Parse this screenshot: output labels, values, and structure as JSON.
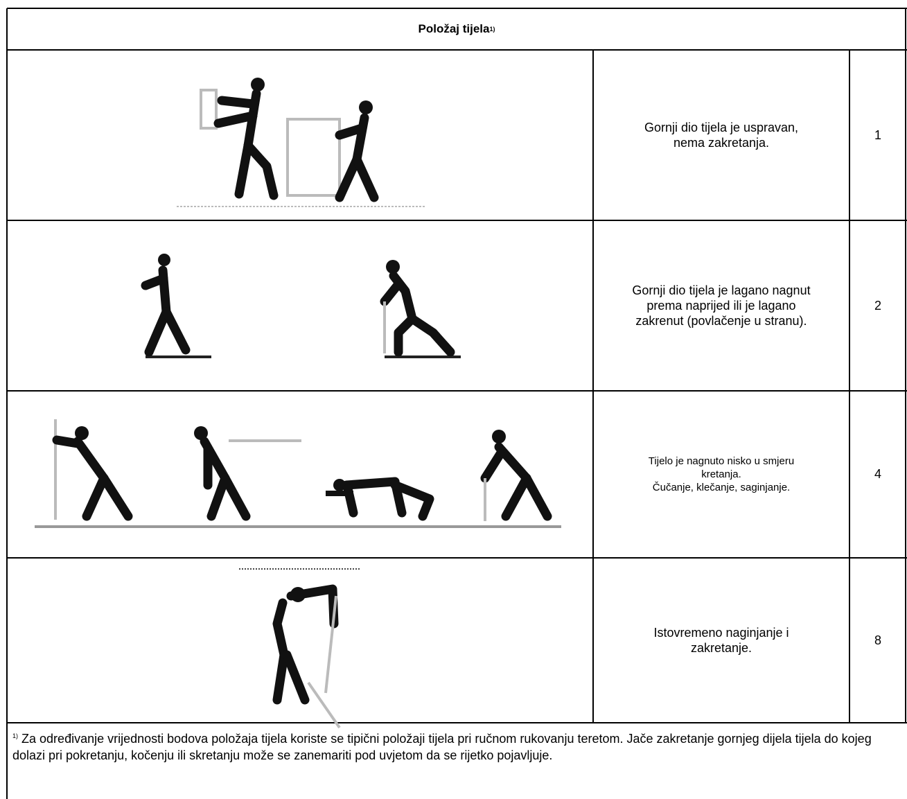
{
  "header": {
    "title": "Položaj tijela",
    "note_mark": "1)"
  },
  "table": {
    "rows": [
      {
        "lines": [
          "Gornji dio tijela je uspravan,",
          "nema zakretanja."
        ],
        "score": 1
      },
      {
        "lines": [
          "Gornji dio tijela je lagano nagnut",
          "prema naprijed ili je lagano",
          "zakrenut (povlačenje u stranu)."
        ],
        "score": 2
      },
      {
        "lines": [
          "Tijelo je nagnuto nisko u smjeru",
          "kretanja.",
          "Čučanje, klečanje, saginjanje."
        ],
        "score": 4
      },
      {
        "lines": [
          "Istovremeno naginjanje i",
          "zakretanje."
        ],
        "score": 8
      }
    ]
  },
  "footnote": {
    "mark": "1)",
    "text": "Za određivanje vrijednosti bodova položaja tijela koriste se tipični položaji tijela pri ručnom rukovanju teretom. Jače zakretanje gornjeg dijela tijela do kojeg dolazi pri pokretanju, kočenju ili skretanju može se zanemariti pod uvjetom da se rijetko pojavljuje."
  }
}
